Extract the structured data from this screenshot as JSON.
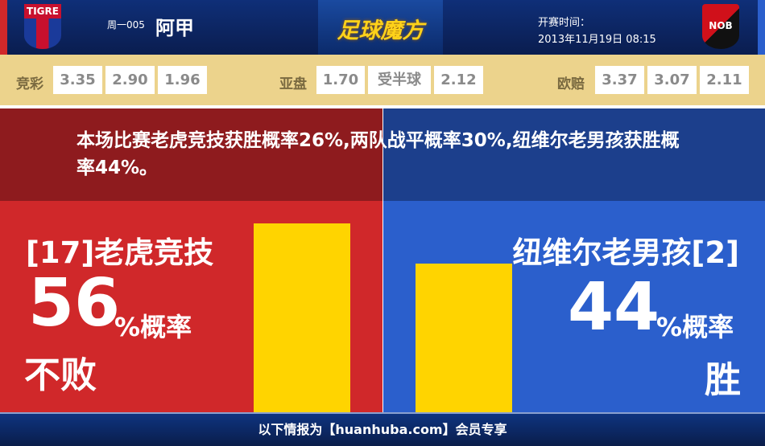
{
  "header": {
    "home_logo_text": "TIGRE",
    "away_logo_text": "NOB",
    "round": "周一005",
    "league": "阿甲",
    "brand": "足球魔方",
    "time_label": "开赛时间：",
    "time_value": "2013年11月19日 08:15"
  },
  "odds": {
    "jc_label": "竞彩",
    "jc": [
      "3.35",
      "2.90",
      "1.96"
    ],
    "yp_label": "亚盘",
    "yp": [
      "1.70",
      "受半球",
      "2.12"
    ],
    "oz_label": "欧赔",
    "oz": [
      "3.37",
      "3.07",
      "2.11"
    ]
  },
  "message": "本场比赛老虎竞技获胜概率26%,两队战平概率30%,纽维尔老男孩获胜概率44%。",
  "home": {
    "name": "[17]老虎竞技",
    "percent": "56",
    "percent_label": "%概率",
    "outcome": "不败",
    "bar_value": 56
  },
  "away": {
    "name": "纽维尔老男孩[2]",
    "percent": "44",
    "percent_label": "%概率",
    "outcome": "胜",
    "bar_value": 44
  },
  "footer": "以下情报为【huanhuba.com】会员专享",
  "colors": {
    "home": "#d0282a",
    "away": "#2b5fcc",
    "bar": "#ffd400"
  }
}
